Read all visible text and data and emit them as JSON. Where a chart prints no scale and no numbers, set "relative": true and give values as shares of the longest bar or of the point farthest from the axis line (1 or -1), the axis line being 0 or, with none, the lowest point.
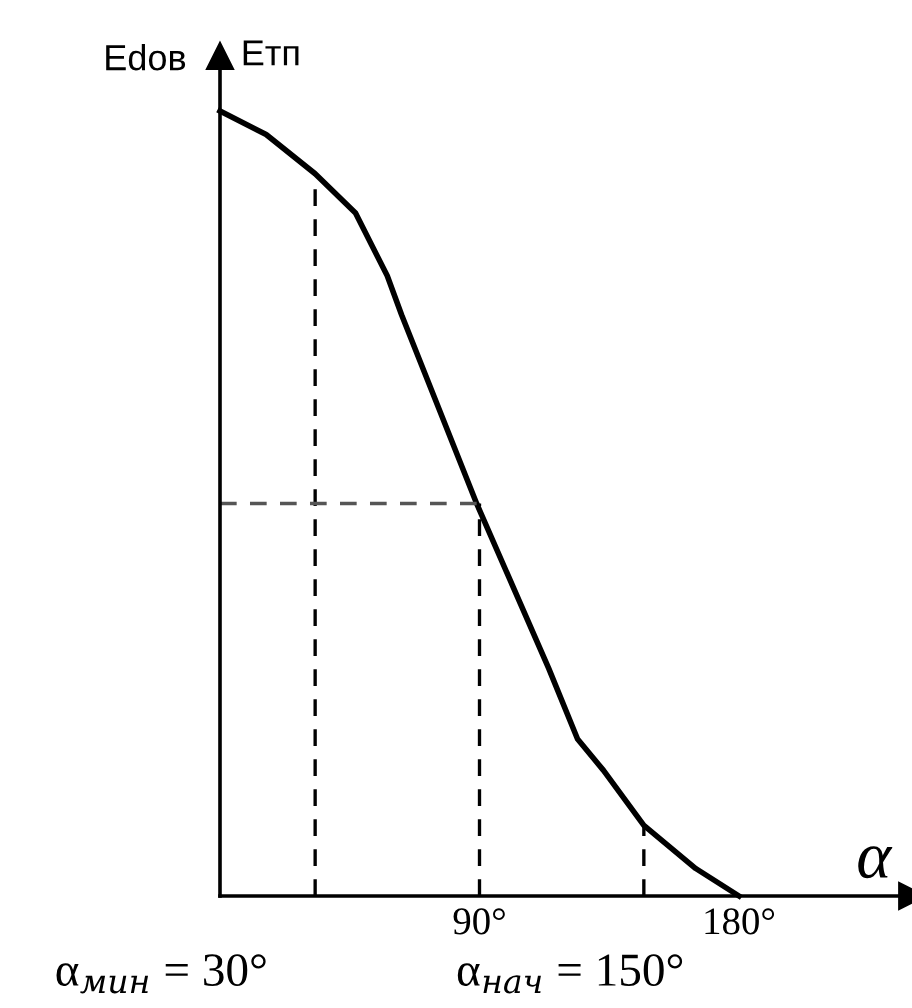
{
  "chart_data": {
    "type": "line",
    "relative": true,
    "xlabel": "α",
    "ylabel": "Етп",
    "xlim": [
      0,
      240
    ],
    "xticks": [
      {
        "value": 90,
        "label": "90°"
      },
      {
        "value": 180,
        "label": "180°"
      }
    ],
    "grid": false,
    "marker": "none",
    "annotations": [
      {
        "text": "Edов",
        "x": 0,
        "y": 1
      },
      "α$_{мин}$ = 30°",
      "α$_{нач}$ = 150°"
    ],
    "series": [
      {
        "color": "#000000",
        "line_style": "solid",
        "x": [
          0,
          16,
          33,
          47,
          58,
          63,
          89,
          114,
          124,
          133,
          147,
          165,
          180
        ],
        "values": [
          1.0,
          0.97,
          0.92,
          0.87,
          0.79,
          0.74,
          0.5,
          0.29,
          0.2,
          0.16,
          0.09,
          0.035,
          0
        ]
      },
      {
        "color": "#000000",
        "line_style": "dashed",
        "x": [
          33,
          33
        ],
        "values": [
          0,
          0.92
        ]
      },
      {
        "color": "#000000",
        "line_style": "dashed",
        "x": [
          90,
          90
        ],
        "values": [
          0,
          0.5
        ]
      },
      {
        "color": "#555555",
        "line_style": "dashed",
        "x": [
          0,
          90
        ],
        "values": [
          0.5,
          0.5
        ]
      },
      {
        "color": "#000000",
        "line_style": "dashed",
        "x": [
          147,
          147
        ],
        "values": [
          0,
          0.09
        ]
      }
    ]
  }
}
